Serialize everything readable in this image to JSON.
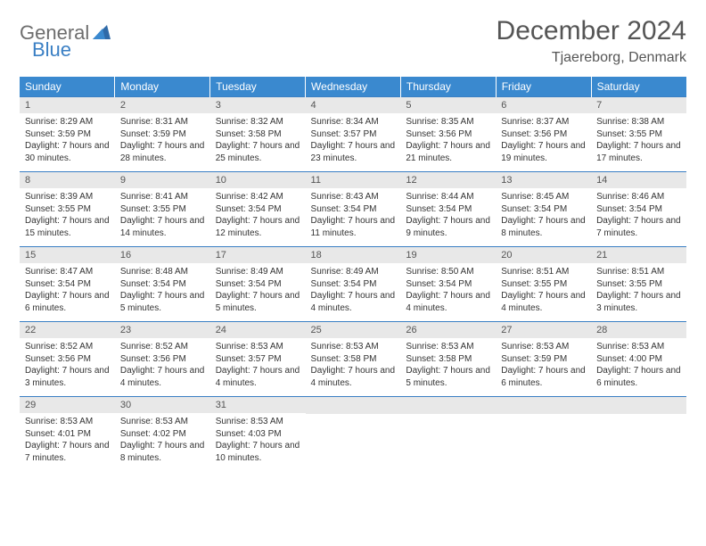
{
  "logo": {
    "general": "General",
    "blue": "Blue"
  },
  "title": "December 2024",
  "location": "Tjaereborg, Denmark",
  "colors": {
    "header_bg": "#3a89cf",
    "header_text": "#ffffff",
    "daynum_bg": "#e8e8e8",
    "border": "#3a7fc4",
    "logo_gray": "#6d6d6d",
    "logo_blue": "#3a7fc4"
  },
  "dow": [
    "Sunday",
    "Monday",
    "Tuesday",
    "Wednesday",
    "Thursday",
    "Friday",
    "Saturday"
  ],
  "days": [
    {
      "n": "1",
      "sunrise": "8:29 AM",
      "sunset": "3:59 PM",
      "daylight": "7 hours and 30 minutes."
    },
    {
      "n": "2",
      "sunrise": "8:31 AM",
      "sunset": "3:59 PM",
      "daylight": "7 hours and 28 minutes."
    },
    {
      "n": "3",
      "sunrise": "8:32 AM",
      "sunset": "3:58 PM",
      "daylight": "7 hours and 25 minutes."
    },
    {
      "n": "4",
      "sunrise": "8:34 AM",
      "sunset": "3:57 PM",
      "daylight": "7 hours and 23 minutes."
    },
    {
      "n": "5",
      "sunrise": "8:35 AM",
      "sunset": "3:56 PM",
      "daylight": "7 hours and 21 minutes."
    },
    {
      "n": "6",
      "sunrise": "8:37 AM",
      "sunset": "3:56 PM",
      "daylight": "7 hours and 19 minutes."
    },
    {
      "n": "7",
      "sunrise": "8:38 AM",
      "sunset": "3:55 PM",
      "daylight": "7 hours and 17 minutes."
    },
    {
      "n": "8",
      "sunrise": "8:39 AM",
      "sunset": "3:55 PM",
      "daylight": "7 hours and 15 minutes."
    },
    {
      "n": "9",
      "sunrise": "8:41 AM",
      "sunset": "3:55 PM",
      "daylight": "7 hours and 14 minutes."
    },
    {
      "n": "10",
      "sunrise": "8:42 AM",
      "sunset": "3:54 PM",
      "daylight": "7 hours and 12 minutes."
    },
    {
      "n": "11",
      "sunrise": "8:43 AM",
      "sunset": "3:54 PM",
      "daylight": "7 hours and 11 minutes."
    },
    {
      "n": "12",
      "sunrise": "8:44 AM",
      "sunset": "3:54 PM",
      "daylight": "7 hours and 9 minutes."
    },
    {
      "n": "13",
      "sunrise": "8:45 AM",
      "sunset": "3:54 PM",
      "daylight": "7 hours and 8 minutes."
    },
    {
      "n": "14",
      "sunrise": "8:46 AM",
      "sunset": "3:54 PM",
      "daylight": "7 hours and 7 minutes."
    },
    {
      "n": "15",
      "sunrise": "8:47 AM",
      "sunset": "3:54 PM",
      "daylight": "7 hours and 6 minutes."
    },
    {
      "n": "16",
      "sunrise": "8:48 AM",
      "sunset": "3:54 PM",
      "daylight": "7 hours and 5 minutes."
    },
    {
      "n": "17",
      "sunrise": "8:49 AM",
      "sunset": "3:54 PM",
      "daylight": "7 hours and 5 minutes."
    },
    {
      "n": "18",
      "sunrise": "8:49 AM",
      "sunset": "3:54 PM",
      "daylight": "7 hours and 4 minutes."
    },
    {
      "n": "19",
      "sunrise": "8:50 AM",
      "sunset": "3:54 PM",
      "daylight": "7 hours and 4 minutes."
    },
    {
      "n": "20",
      "sunrise": "8:51 AM",
      "sunset": "3:55 PM",
      "daylight": "7 hours and 4 minutes."
    },
    {
      "n": "21",
      "sunrise": "8:51 AM",
      "sunset": "3:55 PM",
      "daylight": "7 hours and 3 minutes."
    },
    {
      "n": "22",
      "sunrise": "8:52 AM",
      "sunset": "3:56 PM",
      "daylight": "7 hours and 3 minutes."
    },
    {
      "n": "23",
      "sunrise": "8:52 AM",
      "sunset": "3:56 PM",
      "daylight": "7 hours and 4 minutes."
    },
    {
      "n": "24",
      "sunrise": "8:53 AM",
      "sunset": "3:57 PM",
      "daylight": "7 hours and 4 minutes."
    },
    {
      "n": "25",
      "sunrise": "8:53 AM",
      "sunset": "3:58 PM",
      "daylight": "7 hours and 4 minutes."
    },
    {
      "n": "26",
      "sunrise": "8:53 AM",
      "sunset": "3:58 PM",
      "daylight": "7 hours and 5 minutes."
    },
    {
      "n": "27",
      "sunrise": "8:53 AM",
      "sunset": "3:59 PM",
      "daylight": "7 hours and 6 minutes."
    },
    {
      "n": "28",
      "sunrise": "8:53 AM",
      "sunset": "4:00 PM",
      "daylight": "7 hours and 6 minutes."
    },
    {
      "n": "29",
      "sunrise": "8:53 AM",
      "sunset": "4:01 PM",
      "daylight": "7 hours and 7 minutes."
    },
    {
      "n": "30",
      "sunrise": "8:53 AM",
      "sunset": "4:02 PM",
      "daylight": "7 hours and 8 minutes."
    },
    {
      "n": "31",
      "sunrise": "8:53 AM",
      "sunset": "4:03 PM",
      "daylight": "7 hours and 10 minutes."
    }
  ],
  "labels": {
    "sunrise": "Sunrise: ",
    "sunset": "Sunset: ",
    "daylight": "Daylight: "
  }
}
